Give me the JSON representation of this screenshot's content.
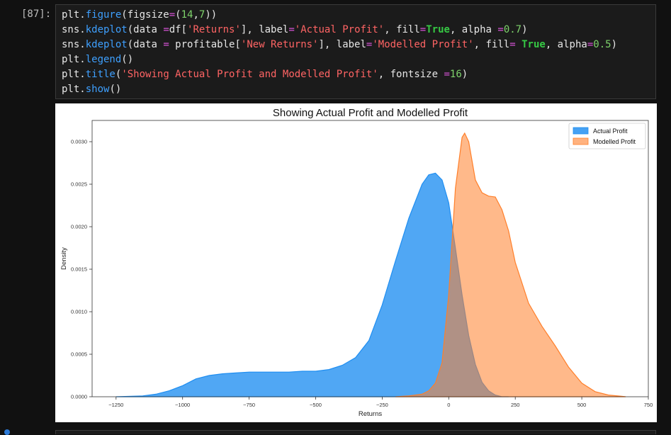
{
  "cell": {
    "prompt": "[87]:"
  },
  "code_lines": [
    [
      [
        "plain",
        "plt."
      ],
      [
        "fn",
        "figure"
      ],
      [
        "plain",
        "(figsize"
      ],
      [
        "op",
        "="
      ],
      [
        "plain",
        "("
      ],
      [
        "num",
        "14"
      ],
      [
        "plain",
        ","
      ],
      [
        "num",
        "7"
      ],
      [
        "plain",
        "))"
      ]
    ],
    [
      [
        "plain",
        "sns."
      ],
      [
        "fn",
        "kdeplot"
      ],
      [
        "plain",
        "(data "
      ],
      [
        "op",
        "="
      ],
      [
        "plain",
        "df["
      ],
      [
        "str",
        "'Returns'"
      ],
      [
        "plain",
        "], label"
      ],
      [
        "op",
        "="
      ],
      [
        "str",
        "'Actual Profit'"
      ],
      [
        "plain",
        ", fill"
      ],
      [
        "op",
        "="
      ],
      [
        "kw",
        "True"
      ],
      [
        "plain",
        ", alpha "
      ],
      [
        "op",
        "="
      ],
      [
        "num",
        "0.7"
      ],
      [
        "plain",
        ")"
      ]
    ],
    [
      [
        "plain",
        "sns."
      ],
      [
        "fn",
        "kdeplot"
      ],
      [
        "plain",
        "(data "
      ],
      [
        "op",
        "="
      ],
      [
        "plain",
        " profitable["
      ],
      [
        "str",
        "'New Returns'"
      ],
      [
        "plain",
        "], label"
      ],
      [
        "op",
        "="
      ],
      [
        "str",
        "'Modelled Profit'"
      ],
      [
        "plain",
        ", fill"
      ],
      [
        "op",
        "="
      ],
      [
        "plain",
        " "
      ],
      [
        "kw",
        "True"
      ],
      [
        "plain",
        ", alpha"
      ],
      [
        "op",
        "="
      ],
      [
        "num",
        "0.5"
      ],
      [
        "plain",
        ")"
      ]
    ],
    [
      [
        "plain",
        "plt."
      ],
      [
        "fn",
        "legend"
      ],
      [
        "plain",
        "()"
      ]
    ],
    [
      [
        "plain",
        "plt."
      ],
      [
        "fn",
        "title"
      ],
      [
        "plain",
        "("
      ],
      [
        "str",
        "'Showing Actual Profit and Modelled Profit'"
      ],
      [
        "plain",
        ", fontsize "
      ],
      [
        "op",
        "="
      ],
      [
        "num",
        "16"
      ],
      [
        "plain",
        ")"
      ]
    ],
    [
      [
        "plain",
        "plt."
      ],
      [
        "fn",
        "show"
      ],
      [
        "plain",
        "()"
      ]
    ]
  ],
  "colors": {
    "actual": "#1f8ef1",
    "modelled": "#ff7f2a",
    "overlap": "#a48f88"
  },
  "chart_data": {
    "type": "area",
    "title": "Showing Actual Profit and Modelled Profit",
    "xlabel": "Returns",
    "ylabel": "Density",
    "xlim": [
      -1340,
      750
    ],
    "ylim": [
      0,
      0.00325
    ],
    "xticks": [
      -1250,
      -1000,
      -750,
      -500,
      -250,
      0,
      250,
      500,
      750
    ],
    "xtick_labels": [
      "−1250",
      "−1000",
      "−750",
      "−500",
      "−250",
      "0",
      "250",
      "500",
      "750"
    ],
    "yticks": [
      0,
      0.0005,
      0.001,
      0.0015,
      0.002,
      0.0025,
      0.003
    ],
    "ytick_labels": [
      "0.0000",
      "0.0005",
      "0.0010",
      "0.0015",
      "0.0020",
      "0.0025",
      "0.0030"
    ],
    "legend_position": "top-right",
    "series": [
      {
        "name": "Actual Profit",
        "x": [
          -1250,
          -1150,
          -1100,
          -1050,
          -1000,
          -950,
          -900,
          -850,
          -800,
          -750,
          -700,
          -650,
          -600,
          -550,
          -500,
          -450,
          -400,
          -350,
          -300,
          -250,
          -200,
          -150,
          -100,
          -75,
          -50,
          -25,
          0,
          25,
          50,
          75,
          100,
          125,
          150,
          175,
          200,
          225
        ],
        "y": [
          0,
          1e-05,
          3e-05,
          7e-05,
          0.00013,
          0.00021,
          0.00025,
          0.00027,
          0.00028,
          0.00029,
          0.00029,
          0.00029,
          0.00029,
          0.0003,
          0.0003,
          0.00032,
          0.00037,
          0.00046,
          0.00066,
          0.00108,
          0.0016,
          0.0021,
          0.0025,
          0.00261,
          0.00263,
          0.00255,
          0.00228,
          0.00175,
          0.0012,
          0.00072,
          0.00038,
          0.00017,
          7e-05,
          2e-05,
          0.0,
          0
        ]
      },
      {
        "name": "Modelled Profit",
        "x": [
          -200,
          -150,
          -100,
          -75,
          -50,
          -25,
          0,
          25,
          50,
          60,
          75,
          100,
          125,
          150,
          175,
          200,
          225,
          250,
          300,
          350,
          400,
          450,
          500,
          550,
          600,
          650,
          665
        ],
        "y": [
          0,
          1e-05,
          3e-05,
          7e-05,
          0.00016,
          0.0004,
          0.0012,
          0.00245,
          0.00305,
          0.0031,
          0.003,
          0.00255,
          0.0024,
          0.00236,
          0.00235,
          0.0022,
          0.00195,
          0.00158,
          0.0011,
          0.00083,
          0.0006,
          0.00035,
          0.00016,
          6e-05,
          2e-05,
          5e-06,
          0
        ]
      }
    ]
  }
}
